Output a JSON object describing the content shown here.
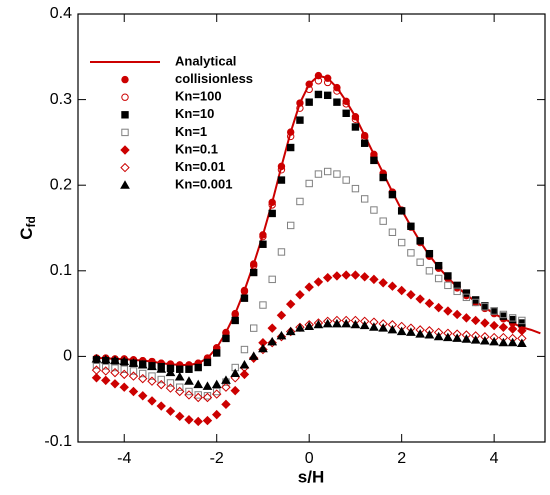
{
  "chart_data": {
    "type": "scatter",
    "x_label": "s/H",
    "y_label": "C",
    "y_label_subscript": "fd",
    "xlim": [
      -5,
      5.1
    ],
    "ylim": [
      -0.1,
      0.4
    ],
    "xticks": [
      -4,
      -2,
      0,
      2,
      4
    ],
    "yticks": [
      -0.1,
      0,
      0.1,
      0.2,
      0.3,
      0.4
    ],
    "legend": "upper left",
    "x": [
      -4.6,
      -4.4,
      -4.2,
      -4.0,
      -3.8,
      -3.6,
      -3.4,
      -3.2,
      -3.0,
      -2.8,
      -2.6,
      -2.4,
      -2.2,
      -2.0,
      -1.8,
      -1.6,
      -1.4,
      -1.2,
      -1.0,
      -0.8,
      -0.6,
      -0.4,
      -0.2,
      0,
      0.2,
      0.4,
      0.6,
      0.8,
      1.0,
      1.2,
      1.4,
      1.6,
      1.8,
      2.0,
      2.2,
      2.4,
      2.6,
      2.8,
      3.0,
      3.2,
      3.4,
      3.6,
      3.8,
      4.0,
      4.2,
      4.4,
      4.6
    ],
    "series": [
      {
        "name": "Analytical",
        "color": "#cc0000",
        "marker": "line",
        "x": [
          -4.6,
          -4.4,
          -4.2,
          -4.0,
          -3.8,
          -3.6,
          -3.4,
          -3.2,
          -3.0,
          -2.8,
          -2.6,
          -2.4,
          -2.2,
          -2.0,
          -1.8,
          -1.6,
          -1.4,
          -1.2,
          -1.0,
          -0.8,
          -0.6,
          -0.4,
          -0.2,
          0,
          0.2,
          0.4,
          0.6,
          0.8,
          1.0,
          1.2,
          1.4,
          1.6,
          1.8,
          2.0,
          2.2,
          2.4,
          2.6,
          2.8,
          3.0,
          3.2,
          3.4,
          3.6,
          3.8,
          4.0,
          4.2,
          4.4,
          4.6,
          4.8,
          5.0
        ],
        "values": [
          -0.002,
          -0.002,
          -0.003,
          -0.003,
          -0.004,
          -0.005,
          -0.006,
          -0.008,
          -0.009,
          -0.01,
          -0.01,
          -0.008,
          -0.002,
          0.01,
          0.028,
          0.05,
          0.077,
          0.108,
          0.142,
          0.18,
          0.222,
          0.262,
          0.296,
          0.318,
          0.328,
          0.325,
          0.314,
          0.298,
          0.28,
          0.258,
          0.236,
          0.214,
          0.192,
          0.171,
          0.152,
          0.134,
          0.118,
          0.104,
          0.092,
          0.081,
          0.072,
          0.064,
          0.057,
          0.05,
          0.044,
          0.039,
          0.034,
          0.031,
          0.027
        ]
      },
      {
        "name": "collisionless",
        "color": "#cc0000",
        "marker": "circle-filled",
        "values": [
          -0.002,
          -0.002,
          -0.003,
          -0.003,
          -0.004,
          -0.005,
          -0.006,
          -0.008,
          -0.009,
          -0.01,
          -0.01,
          -0.008,
          -0.002,
          0.01,
          0.028,
          0.05,
          0.077,
          0.108,
          0.142,
          0.18,
          0.222,
          0.262,
          0.296,
          0.318,
          0.328,
          0.325,
          0.314,
          0.298,
          0.28,
          0.258,
          0.236,
          0.214,
          0.192,
          0.171,
          0.152,
          0.134,
          0.118,
          0.104,
          0.092,
          0.081,
          0.072,
          0.064,
          0.057,
          0.051,
          0.045,
          0.04,
          0.036
        ]
      },
      {
        "name": "Kn=100",
        "color": "#cc0000",
        "marker": "circle-open",
        "values": [
          -0.002,
          -0.002,
          -0.003,
          -0.003,
          -0.004,
          -0.005,
          -0.006,
          -0.008,
          -0.009,
          -0.01,
          -0.01,
          -0.008,
          -0.002,
          0.01,
          0.027,
          0.049,
          0.076,
          0.106,
          0.14,
          0.177,
          0.218,
          0.257,
          0.29,
          0.312,
          0.322,
          0.32,
          0.31,
          0.295,
          0.277,
          0.256,
          0.234,
          0.212,
          0.191,
          0.17,
          0.151,
          0.133,
          0.117,
          0.103,
          0.091,
          0.08,
          0.071,
          0.063,
          0.056,
          0.05,
          0.044,
          0.039,
          0.035
        ]
      },
      {
        "name": "Kn=10",
        "color": "#000000",
        "marker": "square-filled",
        "values": [
          -0.004,
          -0.005,
          -0.006,
          -0.007,
          -0.008,
          -0.009,
          -0.011,
          -0.012,
          -0.014,
          -0.015,
          -0.015,
          -0.013,
          -0.007,
          0.004,
          0.021,
          0.042,
          0.068,
          0.098,
          0.131,
          0.167,
          0.206,
          0.244,
          0.276,
          0.297,
          0.306,
          0.305,
          0.297,
          0.284,
          0.268,
          0.249,
          0.229,
          0.209,
          0.189,
          0.17,
          0.152,
          0.135,
          0.12,
          0.106,
          0.094,
          0.083,
          0.074,
          0.066,
          0.059,
          0.053,
          0.047,
          0.043,
          0.039
        ]
      },
      {
        "name": "Kn=1",
        "color": "#808080",
        "marker": "square-open",
        "values": [
          -0.01,
          -0.011,
          -0.013,
          -0.015,
          -0.017,
          -0.02,
          -0.023,
          -0.027,
          -0.031,
          -0.036,
          -0.041,
          -0.045,
          -0.046,
          -0.041,
          -0.03,
          -0.013,
          0.008,
          0.033,
          0.06,
          0.09,
          0.122,
          0.153,
          0.181,
          0.202,
          0.213,
          0.216,
          0.213,
          0.206,
          0.196,
          0.184,
          0.171,
          0.158,
          0.145,
          0.133,
          0.121,
          0.11,
          0.1,
          0.091,
          0.083,
          0.076,
          0.069,
          0.063,
          0.058,
          0.053,
          0.049,
          0.045,
          0.042
        ]
      },
      {
        "name": "Kn=0.1",
        "color": "#cc0000",
        "marker": "diamond-filled",
        "values": [
          -0.025,
          -0.028,
          -0.032,
          -0.036,
          -0.041,
          -0.046,
          -0.052,
          -0.058,
          -0.064,
          -0.07,
          -0.074,
          -0.076,
          -0.075,
          -0.068,
          -0.056,
          -0.04,
          -0.021,
          -0.002,
          0.016,
          0.033,
          0.048,
          0.061,
          0.072,
          0.081,
          0.087,
          0.092,
          0.094,
          0.095,
          0.095,
          0.093,
          0.09,
          0.086,
          0.082,
          0.077,
          0.072,
          0.067,
          0.062,
          0.057,
          0.053,
          0.049,
          0.045,
          0.042,
          0.039,
          0.036,
          0.034,
          0.032,
          0.03
        ]
      },
      {
        "name": "Kn=0.01",
        "color": "#cc0000",
        "marker": "diamond-open",
        "values": [
          -0.016,
          -0.017,
          -0.019,
          -0.021,
          -0.023,
          -0.026,
          -0.029,
          -0.033,
          -0.037,
          -0.041,
          -0.045,
          -0.048,
          -0.048,
          -0.044,
          -0.036,
          -0.025,
          -0.013,
          -0.002,
          0.008,
          0.016,
          0.023,
          0.029,
          0.034,
          0.037,
          0.039,
          0.041,
          0.042,
          0.042,
          0.042,
          0.041,
          0.04,
          0.038,
          0.037,
          0.035,
          0.033,
          0.031,
          0.03,
          0.028,
          0.027,
          0.026,
          0.025,
          0.024,
          0.023,
          0.022,
          0.022,
          0.021,
          0.021
        ]
      },
      {
        "name": "Kn=0.001",
        "color": "#000000",
        "marker": "triangle-filled",
        "values": [
          -0.003,
          -0.004,
          -0.005,
          -0.006,
          -0.008,
          -0.01,
          -0.012,
          -0.015,
          -0.019,
          -0.024,
          -0.029,
          -0.033,
          -0.035,
          -0.033,
          -0.028,
          -0.02,
          -0.01,
          0.0,
          0.009,
          0.017,
          0.024,
          0.029,
          0.033,
          0.035,
          0.037,
          0.038,
          0.038,
          0.038,
          0.037,
          0.036,
          0.034,
          0.033,
          0.031,
          0.029,
          0.028,
          0.026,
          0.025,
          0.023,
          0.022,
          0.021,
          0.02,
          0.019,
          0.018,
          0.017,
          0.016,
          0.016,
          0.015
        ]
      }
    ]
  }
}
